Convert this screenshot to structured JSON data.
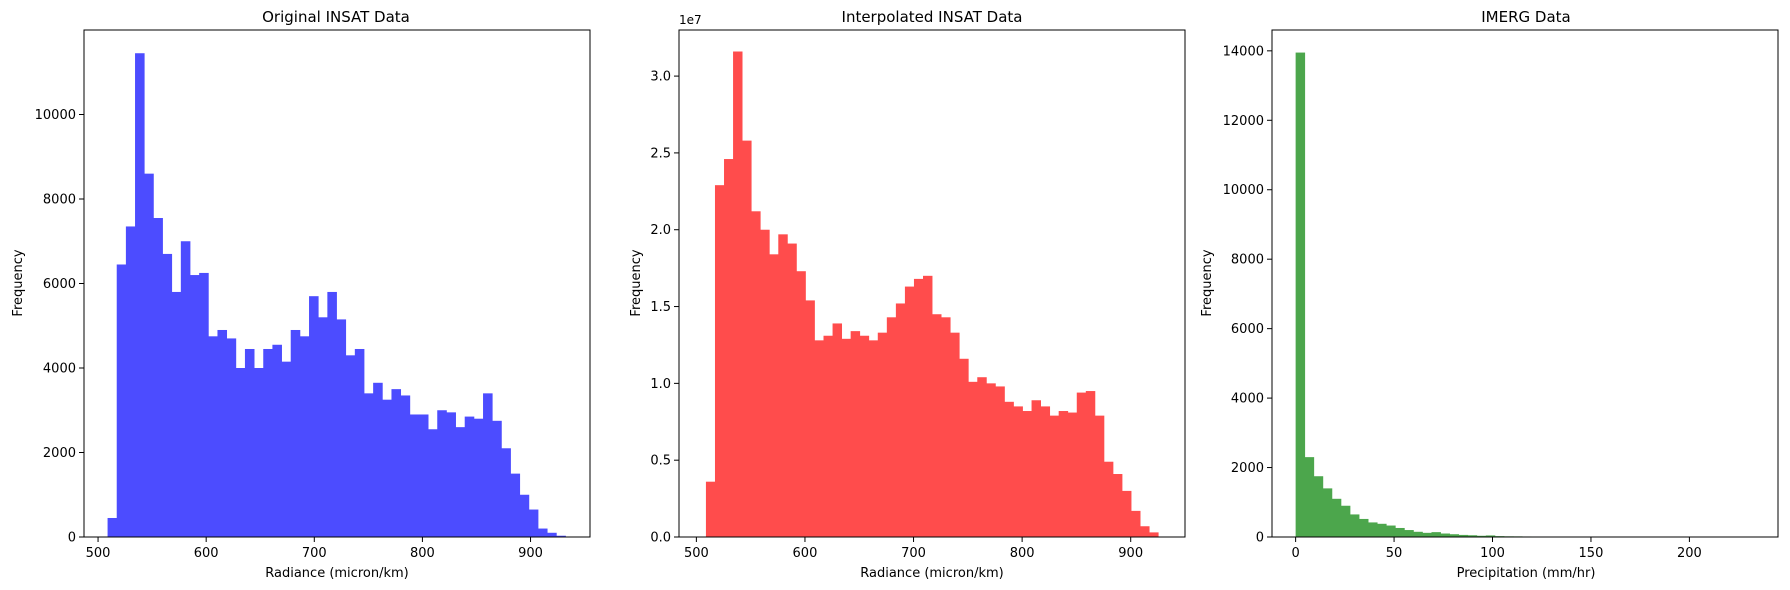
{
  "chart_data": [
    {
      "type": "bar",
      "title": "Original INSAT Data",
      "xlabel": "Radiance (micron/km)",
      "ylabel": "Frequency",
      "xlim": [
        487,
        955
      ],
      "ylim": [
        0,
        12000
      ],
      "xticks": [
        500,
        600,
        700,
        800,
        900
      ],
      "yticks": [
        0,
        2000,
        4000,
        6000,
        8000,
        10000
      ],
      "color": "#4c4cff",
      "bin_start": 508.8,
      "bin_width": 8.47,
      "values": [
        450,
        6450,
        7350,
        11450,
        8600,
        7550,
        6700,
        5800,
        7000,
        6200,
        6250,
        4750,
        4900,
        4700,
        4000,
        4450,
        4000,
        4450,
        4550,
        4150,
        4900,
        4750,
        5700,
        5200,
        5800,
        5150,
        4300,
        4450,
        3400,
        3650,
        3250,
        3500,
        3350,
        2900,
        2900,
        2550,
        3000,
        2950,
        2600,
        2850,
        2800,
        3400,
        2750,
        2100,
        1500,
        1000,
        650,
        200,
        100,
        30
      ]
    },
    {
      "type": "bar",
      "title": "Interpolated INSAT Data",
      "xlabel": "Radiance (micron/km)",
      "ylabel": "Frequency",
      "scale_label": "1e7",
      "xlim": [
        484,
        950
      ],
      "ylim": [
        0,
        33000000
      ],
      "xticks": [
        500,
        600,
        700,
        800,
        900
      ],
      "yticks": [
        0,
        5000000,
        10000000,
        15000000,
        20000000,
        25000000,
        30000000
      ],
      "ytick_labels": [
        "0.0",
        "0.5",
        "1.0",
        "1.5",
        "2.0",
        "2.5",
        "3.0"
      ],
      "color": "#ff4c4c",
      "bin_start": 508.8,
      "bin_width": 8.33,
      "values": [
        3600000,
        22900000,
        24600000,
        31600000,
        25800000,
        21200000,
        20000000,
        18400000,
        19700000,
        19100000,
        17300000,
        15400000,
        12800000,
        13100000,
        13900000,
        12900000,
        13400000,
        13100000,
        12800000,
        13300000,
        14300000,
        15200000,
        16300000,
        16800000,
        17000000,
        14500000,
        14300000,
        13300000,
        11600000,
        10100000,
        10400000,
        10000000,
        9800000,
        8800000,
        8500000,
        8200000,
        8900000,
        8500000,
        7900000,
        8200000,
        8100000,
        9400000,
        9500000,
        7900000,
        4900000,
        4100000,
        3000000,
        1700000,
        700000,
        300000
      ]
    },
    {
      "type": "bar",
      "title": "IMERG Data",
      "xlabel": "Precipitation (mm/hr)",
      "ylabel": "Frequency",
      "xlim": [
        -12,
        245
      ],
      "ylim": [
        0,
        14600
      ],
      "xticks": [
        0,
        50,
        100,
        150,
        200
      ],
      "yticks": [
        0,
        2000,
        4000,
        6000,
        8000,
        10000,
        12000,
        14000
      ],
      "color": "#4ca64c",
      "bin_start": 0,
      "bin_width": 4.6,
      "values": [
        13950,
        2300,
        1750,
        1400,
        1100,
        900,
        650,
        520,
        420,
        380,
        330,
        260,
        200,
        150,
        120,
        140,
        100,
        80,
        60,
        50,
        35,
        45,
        25,
        20,
        18,
        15,
        12,
        10,
        10,
        8,
        8,
        6,
        5,
        5,
        4,
        3,
        3,
        8,
        3,
        2,
        2,
        2,
        1,
        1,
        1,
        1,
        1,
        1,
        1,
        1
      ]
    }
  ]
}
